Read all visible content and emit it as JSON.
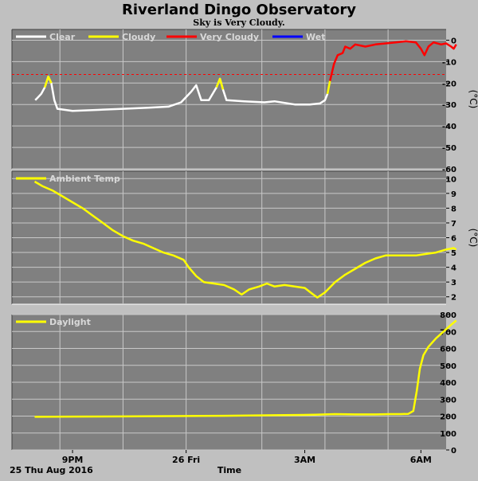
{
  "page": {
    "title": "Riverland Dingo Observatory",
    "subtitle": "Sky is Very Cloudy.",
    "date_label": "25 Thu Aug 2016",
    "x_axis_label": "Time",
    "x_ticks": [
      "9PM",
      "26 Fri",
      "3AM",
      "6AM"
    ]
  },
  "colors": {
    "background": "#c0c0c0",
    "plot_bg": "#808080",
    "grid": "#c8c8c8",
    "clear": "#ffffff",
    "cloudy": "#ffff00",
    "very_cloudy": "#ff0000",
    "wet": "#0000ff",
    "threshold": "#ff0000",
    "ambient": "#ffff00",
    "daylight": "#ffff00"
  },
  "chart_data": [
    {
      "type": "line",
      "name": "sky",
      "legend": [
        {
          "label": "Clear",
          "color": "#ffffff"
        },
        {
          "label": "Cloudy",
          "color": "#ffff00"
        },
        {
          "label": "Very Cloudy",
          "color": "#ff0000"
        },
        {
          "label": "Wet",
          "color": "#0000ff"
        }
      ],
      "ylabel": "(°C)",
      "ylim": [
        -60,
        5
      ],
      "yticks": [
        0,
        -10,
        -20,
        -30,
        -40,
        -50,
        -60
      ],
      "xlim": [
        -1.2,
        7.4
      ],
      "threshold": -16,
      "threshold_color": "#ff0000",
      "grid": true,
      "series": [
        {
          "color": "#ffffff",
          "points": [
            [
              -0.74,
              -28
            ],
            [
              -0.7,
              -27
            ],
            [
              -0.62,
              -25
            ],
            [
              -0.55,
              -22
            ],
            [
              -0.48,
              -17
            ],
            [
              -0.42,
              -20
            ],
            [
              -0.36,
              -28
            ],
            [
              -0.3,
              -32
            ],
            [
              0,
              -33
            ],
            [
              0.5,
              -32.5
            ],
            [
              1,
              -32
            ],
            [
              1.5,
              -31.5
            ],
            [
              1.9,
              -31
            ],
            [
              2.15,
              -29
            ],
            [
              2.35,
              -24
            ],
            [
              2.45,
              -21
            ],
            [
              2.55,
              -28
            ],
            [
              2.7,
              -28
            ],
            [
              2.85,
              -22
            ],
            [
              2.92,
              -18
            ],
            [
              2.98,
              -23
            ],
            [
              3.05,
              -28
            ],
            [
              3.4,
              -28.5
            ],
            [
              3.8,
              -29
            ],
            [
              4.0,
              -28.5
            ],
            [
              4.4,
              -30
            ],
            [
              4.7,
              -30
            ],
            [
              4.9,
              -29.5
            ],
            [
              5.0,
              -28
            ],
            [
              5.05,
              -25
            ]
          ]
        },
        {
          "color": "#ffff00",
          "points": [
            [
              -0.55,
              -22
            ],
            [
              -0.48,
              -17
            ],
            [
              -0.42,
              -20
            ]
          ]
        },
        {
          "color": "#ffff00",
          "points": [
            [
              2.85,
              -22
            ],
            [
              2.92,
              -18
            ],
            [
              2.98,
              -23
            ]
          ]
        },
        {
          "color": "#ffff00",
          "points": [
            [
              5.05,
              -25
            ],
            [
              5.1,
              -19
            ]
          ]
        },
        {
          "color": "#ff0000",
          "points": [
            [
              5.1,
              -19
            ],
            [
              5.18,
              -11
            ],
            [
              5.25,
              -7
            ],
            [
              5.35,
              -6
            ],
            [
              5.4,
              -3
            ],
            [
              5.5,
              -4
            ],
            [
              5.6,
              -2
            ],
            [
              5.8,
              -3
            ],
            [
              6.0,
              -2
            ],
            [
              6.2,
              -1.5
            ],
            [
              6.4,
              -1
            ],
            [
              6.6,
              -0.5
            ],
            [
              6.8,
              -1
            ],
            [
              6.9,
              -4
            ],
            [
              6.97,
              -7
            ],
            [
              7.05,
              -3
            ],
            [
              7.15,
              -1
            ],
            [
              7.3,
              -2
            ],
            [
              7.4,
              -1.5
            ],
            [
              7.5,
              -3
            ],
            [
              7.55,
              -4
            ],
            [
              7.6,
              -2
            ]
          ]
        }
      ]
    },
    {
      "type": "line",
      "name": "ambient",
      "legend": [
        {
          "label": "Ambient Temp",
          "color": "#ffff00"
        }
      ],
      "ylabel": "(°C)",
      "ylim": [
        1.5,
        10.5
      ],
      "yticks": [
        10,
        9,
        8,
        7,
        6,
        5,
        4,
        3,
        2
      ],
      "xlim": [
        -1.2,
        7.4
      ],
      "grid": true,
      "series": [
        {
          "color": "#ffff00",
          "points": [
            [
              -0.75,
              9.8
            ],
            [
              -0.6,
              9.5
            ],
            [
              -0.4,
              9.2
            ],
            [
              -0.2,
              8.8
            ],
            [
              0,
              8.4
            ],
            [
              0.2,
              8.0
            ],
            [
              0.4,
              7.5
            ],
            [
              0.6,
              7.0
            ],
            [
              0.8,
              6.5
            ],
            [
              1.0,
              6.1
            ],
            [
              1.2,
              5.8
            ],
            [
              1.4,
              5.6
            ],
            [
              1.6,
              5.3
            ],
            [
              1.8,
              5.0
            ],
            [
              2.0,
              4.8
            ],
            [
              2.2,
              4.5
            ],
            [
              2.3,
              4.0
            ],
            [
              2.45,
              3.4
            ],
            [
              2.6,
              3.0
            ],
            [
              2.8,
              2.9
            ],
            [
              3.0,
              2.8
            ],
            [
              3.2,
              2.5
            ],
            [
              3.35,
              2.15
            ],
            [
              3.5,
              2.5
            ],
            [
              3.7,
              2.7
            ],
            [
              3.85,
              2.9
            ],
            [
              4.0,
              2.7
            ],
            [
              4.2,
              2.8
            ],
            [
              4.4,
              2.7
            ],
            [
              4.6,
              2.6
            ],
            [
              4.75,
              2.2
            ],
            [
              4.85,
              1.95
            ],
            [
              5.0,
              2.3
            ],
            [
              5.2,
              3.0
            ],
            [
              5.4,
              3.5
            ],
            [
              5.6,
              3.9
            ],
            [
              5.8,
              4.3
            ],
            [
              6.0,
              4.6
            ],
            [
              6.2,
              4.8
            ],
            [
              6.4,
              4.8
            ],
            [
              6.6,
              4.8
            ],
            [
              6.8,
              4.8
            ],
            [
              7.0,
              4.9
            ],
            [
              7.2,
              5.0
            ],
            [
              7.4,
              5.2
            ],
            [
              7.55,
              5.3
            ],
            [
              7.6,
              5.2
            ]
          ]
        }
      ]
    },
    {
      "type": "line",
      "name": "daylight",
      "legend": [
        {
          "label": "Daylight",
          "color": "#ffff00"
        }
      ],
      "ylabel": "",
      "ylim": [
        0,
        800
      ],
      "yticks": [
        800,
        700,
        600,
        500,
        400,
        300,
        200,
        100,
        0
      ],
      "xlim": [
        -1.2,
        7.4
      ],
      "grid": true,
      "series": [
        {
          "color": "#ffff00",
          "points": [
            [
              -0.75,
              196
            ],
            [
              0,
              197
            ],
            [
              1,
              198
            ],
            [
              2,
              200
            ],
            [
              3,
              202
            ],
            [
              4,
              205
            ],
            [
              4.8,
              208
            ],
            [
              5.2,
              212
            ],
            [
              5.6,
              210
            ],
            [
              6.0,
              210
            ],
            [
              6.3,
              212
            ],
            [
              6.5,
              212
            ],
            [
              6.65,
              213
            ],
            [
              6.75,
              230
            ],
            [
              6.82,
              350
            ],
            [
              6.88,
              480
            ],
            [
              6.95,
              560
            ],
            [
              7.05,
              610
            ],
            [
              7.2,
              660
            ],
            [
              7.35,
              700
            ],
            [
              7.5,
              740
            ],
            [
              7.6,
              765
            ]
          ]
        }
      ]
    }
  ]
}
